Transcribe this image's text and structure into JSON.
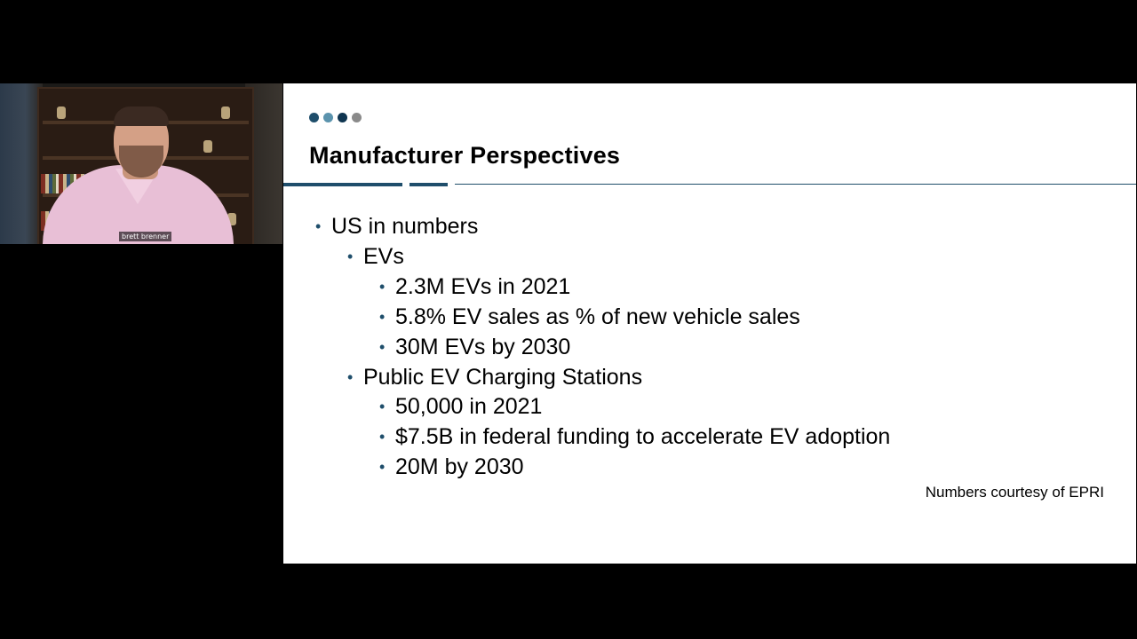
{
  "participant": {
    "name": "brett brenner"
  },
  "slide": {
    "progress_dots": [
      {
        "color": "#1f4e6b"
      },
      {
        "color": "#5b93ad"
      },
      {
        "color": "#0f3550"
      },
      {
        "color": "#8a8a8a"
      }
    ],
    "accent_color": "#1f4e6b",
    "title": "Manufacturer Perspectives",
    "bullets": [
      {
        "level": 1,
        "text": "US in numbers"
      },
      {
        "level": 2,
        "text": "EVs"
      },
      {
        "level": 3,
        "text": "2.3M EVs in 2021"
      },
      {
        "level": 3,
        "text": "5.8% EV sales as % of new vehicle sales"
      },
      {
        "level": 3,
        "text": "30M EVs by 2030"
      },
      {
        "level": 2,
        "text": "Public EV Charging Stations"
      },
      {
        "level": 3,
        "text": "50,000 in 2021"
      },
      {
        "level": 3,
        "text": "$7.5B in federal funding to accelerate EV adoption"
      },
      {
        "level": 3,
        "text": "20M by 2030"
      }
    ],
    "credit": "Numbers courtesy of EPRI"
  }
}
